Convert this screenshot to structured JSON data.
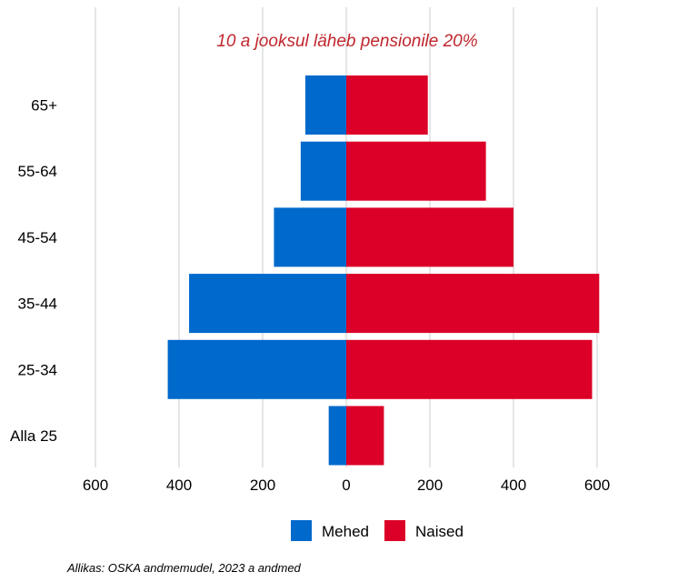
{
  "chart_data": {
    "type": "bar",
    "orientation": "horizontal",
    "layout": "population-pyramid",
    "categories": [
      "Alla 25",
      "25-34",
      "35-44",
      "45-54",
      "55-64",
      "65+"
    ],
    "series": [
      {
        "name": "Mehed",
        "color": "#0069cc",
        "side": "left",
        "values": [
          42,
          427,
          376,
          173,
          109,
          98
        ]
      },
      {
        "name": "Naised",
        "color": "#dc0028",
        "side": "right",
        "values": [
          90,
          588,
          605,
          400,
          334,
          195
        ]
      }
    ],
    "xlim": [
      -600,
      600
    ],
    "xticks": [
      -600,
      -400,
      -200,
      0,
      200,
      400,
      600
    ],
    "xtick_labels": [
      "600",
      "400",
      "200",
      "0",
      "200",
      "400",
      "600"
    ],
    "annotation": {
      "text": "10 a jooksul läheb pensionile 20%",
      "color": "#c0262d"
    },
    "grid": "vertical",
    "legend": {
      "position": "bottom-center",
      "items": [
        "Mehed",
        "Naised"
      ]
    },
    "source": "Allikas: OSKA andmemudel, 2023 a andmed"
  }
}
